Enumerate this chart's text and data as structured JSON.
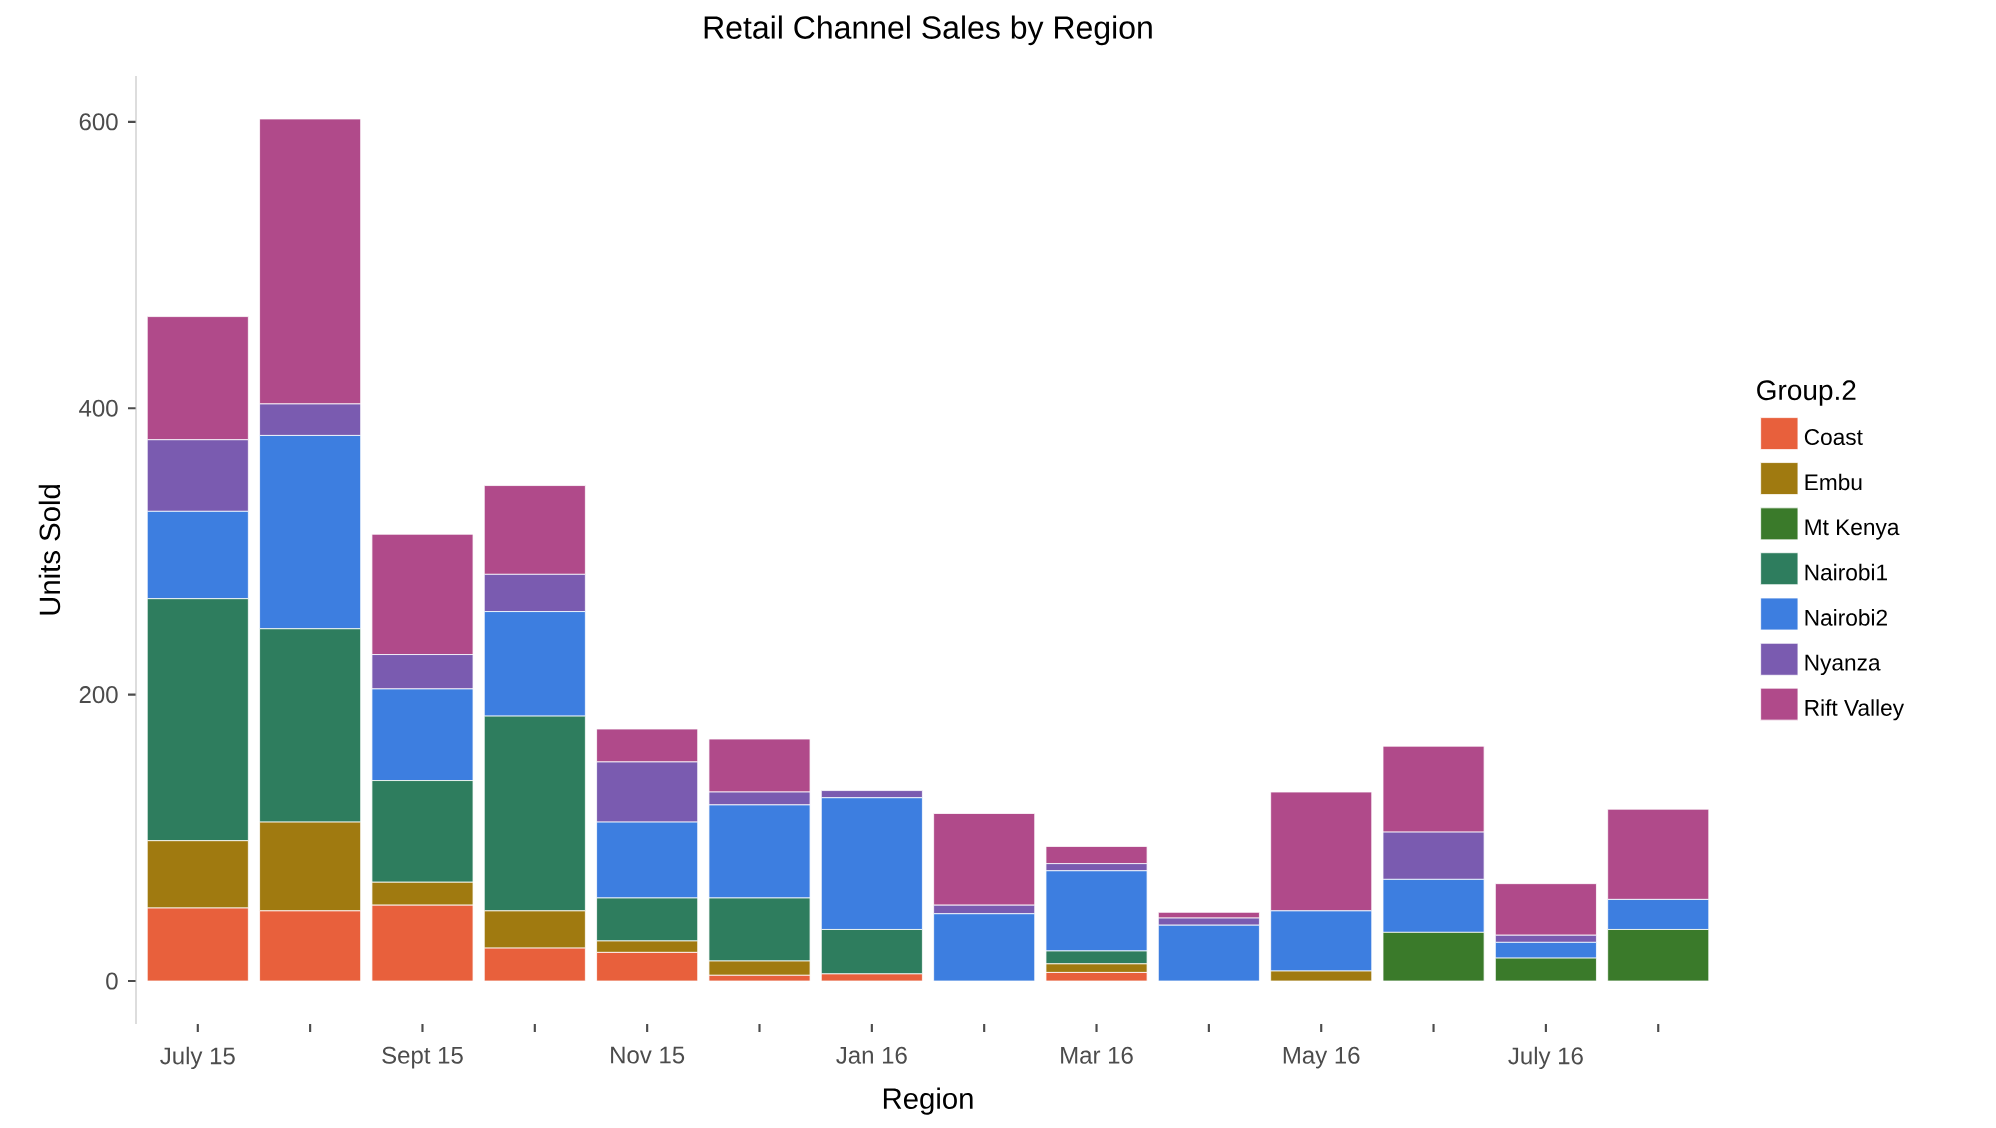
{
  "chart_data": {
    "type": "bar",
    "stacked": true,
    "title": "Retail Channel Sales by Region",
    "xlabel": "Region",
    "ylabel": "Units Sold",
    "legend_title": "Group.2",
    "legend": "right",
    "categories": [
      "July 15",
      null,
      "Sept 15",
      null,
      "Nov 15",
      null,
      "Jan 16",
      null,
      "Mar 16",
      null,
      "May 16",
      null,
      "July 16",
      null
    ],
    "ylim": [
      -30,
      632
    ],
    "yticks": [
      0,
      200,
      400,
      600
    ],
    "grid": false,
    "series": [
      {
        "name": "Coast",
        "color": "#e8603c",
        "values": [
          51,
          49,
          53,
          23,
          20,
          4,
          5,
          0,
          6,
          0,
          0,
          0,
          0,
          0
        ]
      },
      {
        "name": "Embu",
        "color": "#a07a10",
        "values": [
          47,
          62,
          16,
          26,
          8,
          10,
          0,
          0,
          6,
          0,
          7,
          0,
          0,
          0
        ]
      },
      {
        "name": "Mt Kenya",
        "color": "#3a7a2a",
        "values": [
          0,
          0,
          0,
          0,
          0,
          0,
          0,
          0,
          0,
          0,
          0,
          34,
          16,
          36
        ]
      },
      {
        "name": "Nairobi1",
        "color": "#2e7d5e",
        "values": [
          169,
          135,
          71,
          136,
          30,
          44,
          31,
          0,
          9,
          0,
          0,
          0,
          0,
          0
        ]
      },
      {
        "name": "Nairobi2",
        "color": "#3d7ee0",
        "values": [
          61,
          135,
          64,
          73,
          53,
          65,
          92,
          47,
          56,
          39,
          42,
          37,
          11,
          21
        ]
      },
      {
        "name": "Nyanza",
        "color": "#7a5bb0",
        "values": [
          50,
          22,
          24,
          26,
          42,
          9,
          5,
          6,
          5,
          5,
          0,
          33,
          5,
          0
        ]
      },
      {
        "name": "Rift Valley",
        "color": "#b04a8a",
        "values": [
          86,
          199,
          84,
          62,
          23,
          37,
          0,
          64,
          12,
          4,
          83,
          60,
          36,
          63
        ]
      }
    ]
  }
}
